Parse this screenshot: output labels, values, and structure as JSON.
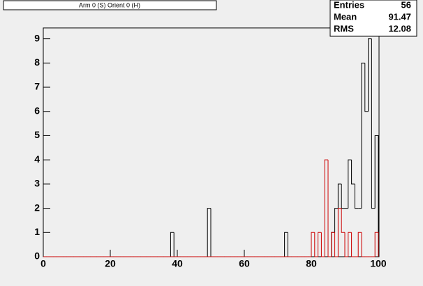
{
  "chart_data": {
    "type": "histogram",
    "title": "Arm 0 (S) Orient 0 (H)",
    "bins": [
      0,
      1,
      2,
      3,
      4,
      5,
      6,
      7,
      8,
      9,
      10,
      11,
      12,
      13,
      14,
      15,
      16,
      17,
      18,
      19,
      20,
      21,
      22,
      23,
      24,
      25,
      26,
      27,
      28,
      29,
      30,
      31,
      32,
      33,
      34,
      35,
      36,
      37,
      38,
      39,
      40,
      41,
      42,
      43,
      44,
      45,
      46,
      47,
      48,
      49,
      50,
      51,
      52,
      53,
      54,
      55,
      56,
      57,
      58,
      59,
      60,
      61,
      62,
      63,
      64,
      65,
      66,
      67,
      68,
      69,
      70,
      71,
      72,
      73,
      74,
      75,
      76,
      77,
      78,
      79,
      80,
      81,
      82,
      83,
      84,
      85,
      86,
      87,
      88,
      89,
      90,
      91,
      92,
      93,
      94,
      95,
      96,
      97,
      98,
      99,
      100
    ],
    "series": [
      {
        "color": "#000000",
        "values": [
          0,
          0,
          0,
          0,
          0,
          0,
          0,
          0,
          0,
          0,
          0,
          0,
          0,
          0,
          0,
          0,
          0,
          0,
          0,
          0,
          0,
          0,
          0,
          0,
          0,
          0,
          0,
          0,
          0,
          0,
          0,
          0,
          0,
          0,
          0,
          0,
          0,
          0,
          1,
          0,
          0,
          0,
          0,
          0,
          0,
          0,
          0,
          0,
          0,
          2,
          0,
          0,
          0,
          0,
          0,
          0,
          0,
          0,
          0,
          0,
          0,
          0,
          0,
          0,
          0,
          0,
          0,
          0,
          0,
          0,
          0,
          0,
          1,
          0,
          0,
          0,
          0,
          0,
          0,
          0,
          0,
          0,
          0,
          0,
          0,
          0,
          1,
          2,
          3,
          2,
          2,
          4,
          3,
          2,
          2,
          8,
          6,
          9,
          2,
          5
        ]
      },
      {
        "color": "#cc0000",
        "values": [
          0,
          0,
          0,
          0,
          0,
          0,
          0,
          0,
          0,
          0,
          0,
          0,
          0,
          0,
          0,
          0,
          0,
          0,
          0,
          0,
          0,
          0,
          0,
          0,
          0,
          0,
          0,
          0,
          0,
          0,
          0,
          0,
          0,
          0,
          0,
          0,
          0,
          0,
          0,
          0,
          0,
          0,
          0,
          0,
          0,
          0,
          0,
          0,
          0,
          0,
          0,
          0,
          0,
          0,
          0,
          0,
          0,
          0,
          0,
          0,
          0,
          0,
          0,
          0,
          0,
          0,
          0,
          0,
          0,
          0,
          0,
          0,
          0,
          0,
          0,
          0,
          0,
          0,
          0,
          0,
          1,
          0,
          1,
          0,
          4,
          0,
          1,
          0,
          2,
          1,
          0,
          1,
          0,
          0,
          1,
          0,
          0,
          0,
          0,
          1
        ]
      }
    ],
    "xlim": [
      0,
      100
    ],
    "xticks": [
      0,
      20,
      40,
      60,
      80,
      100
    ],
    "ylim": [
      0,
      9.45
    ],
    "yticks": [
      0,
      1,
      2,
      3,
      4,
      5,
      6,
      7,
      8,
      9
    ],
    "stats": [
      [
        "Entries",
        56
      ],
      [
        "Mean",
        91.47
      ],
      [
        "RMS",
        12.08
      ]
    ]
  }
}
